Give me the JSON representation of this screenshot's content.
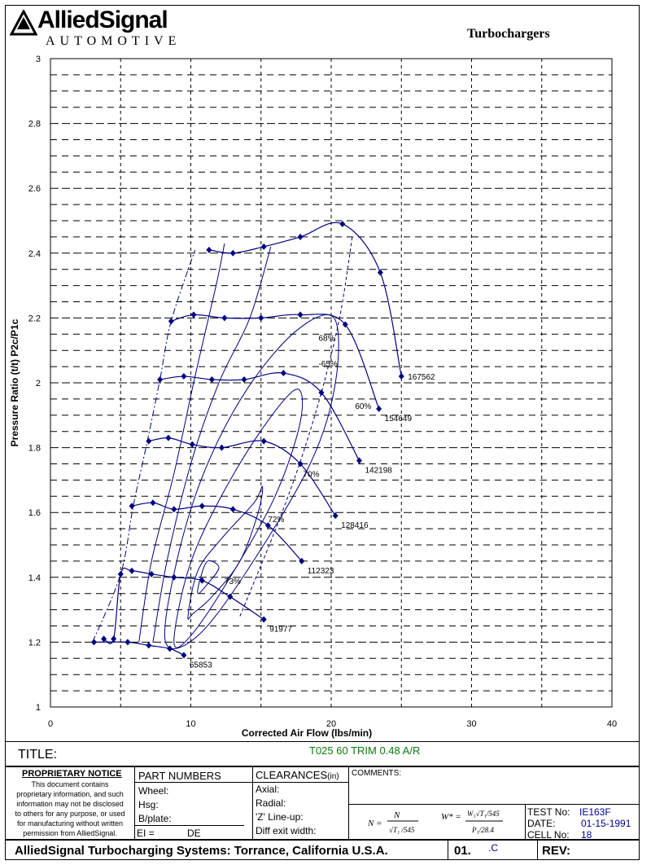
{
  "header": {
    "brand": "AlliedSignal",
    "brand_sub": "AUTOMOTIVE",
    "title": "Turbochargers"
  },
  "chart_data": {
    "type": "line",
    "title": "",
    "xlabel": "Corrected Air Flow (lbs/min)",
    "ylabel": "Pressure Ratio (t/t) P2c/P1c",
    "xlim": [
      0,
      40
    ],
    "ylim": [
      1,
      3
    ],
    "x_ticks": [
      "0",
      "10",
      "20",
      "30",
      "40"
    ],
    "y_ticks": [
      "1",
      "1.2",
      "1.4",
      "1.6",
      "1.8",
      "2",
      "2.2",
      "2.4",
      "2.6",
      "2.8",
      "3"
    ],
    "grid": true,
    "speed_lines": [
      {
        "label": "65853",
        "points": [
          [
            3.1,
            1.2
          ],
          [
            5.5,
            1.2
          ],
          [
            7,
            1.19
          ],
          [
            8.5,
            1.18
          ],
          [
            9.5,
            1.16
          ]
        ]
      },
      {
        "label": "91977",
        "points": [
          [
            3.8,
            1.21
          ],
          [
            4.5,
            1.21
          ],
          [
            5.0,
            1.41
          ],
          [
            5.8,
            1.42
          ],
          [
            7.2,
            1.41
          ],
          [
            8.8,
            1.4
          ],
          [
            10.8,
            1.39
          ],
          [
            12.8,
            1.34
          ],
          [
            15.2,
            1.27
          ]
        ]
      },
      {
        "label": "112323",
        "points": [
          [
            5.8,
            1.62
          ],
          [
            7.3,
            1.63
          ],
          [
            8.8,
            1.61
          ],
          [
            10.8,
            1.62
          ],
          [
            13.0,
            1.61
          ],
          [
            15.5,
            1.56
          ],
          [
            17.9,
            1.45
          ]
        ]
      },
      {
        "label": "128416",
        "points": [
          [
            7.0,
            1.82
          ],
          [
            8.4,
            1.83
          ],
          [
            10.1,
            1.81
          ],
          [
            12.2,
            1.8
          ],
          [
            15.2,
            1.82
          ],
          [
            17.8,
            1.75
          ],
          [
            20.3,
            1.59
          ]
        ]
      },
      {
        "label": "142198",
        "points": [
          [
            7.8,
            2.01
          ],
          [
            9.5,
            2.02
          ],
          [
            11.5,
            2.01
          ],
          [
            13.8,
            2.01
          ],
          [
            16.6,
            2.03
          ],
          [
            19.3,
            1.97
          ],
          [
            22.0,
            1.76
          ]
        ]
      },
      {
        "label": "154649",
        "points": [
          [
            8.6,
            2.19
          ],
          [
            10.2,
            2.21
          ],
          [
            12.4,
            2.2
          ],
          [
            15.0,
            2.2
          ],
          [
            17.8,
            2.21
          ],
          [
            21.0,
            2.18
          ],
          [
            23.4,
            1.92
          ]
        ]
      },
      {
        "label": "167562",
        "points": [
          [
            11.3,
            2.41
          ],
          [
            13.0,
            2.4
          ],
          [
            15.2,
            2.42
          ],
          [
            17.8,
            2.45
          ],
          [
            20.8,
            2.49
          ],
          [
            23.5,
            2.34
          ],
          [
            25.0,
            2.02
          ]
        ]
      }
    ],
    "surge_line": [
      [
        3.0,
        1.2
      ],
      [
        5.0,
        1.41
      ],
      [
        5.9,
        1.62
      ],
      [
        6.9,
        1.82
      ],
      [
        7.8,
        2.01
      ],
      [
        8.6,
        2.19
      ],
      [
        10.3,
        2.41
      ]
    ],
    "efficiency_islands": [
      {
        "label": "73%",
        "points": [
          [
            10.5,
            1.35
          ],
          [
            10.7,
            1.4
          ],
          [
            11.2,
            1.45
          ],
          [
            12.0,
            1.43
          ],
          [
            11.2,
            1.38
          ]
        ]
      },
      {
        "label": "72%",
        "points": [
          [
            9.8,
            1.28
          ],
          [
            10.5,
            1.42
          ],
          [
            12.2,
            1.52
          ],
          [
            14.5,
            1.63
          ],
          [
            15.1,
            1.68
          ],
          [
            14.8,
            1.6
          ],
          [
            13.5,
            1.45
          ],
          [
            11.5,
            1.34
          ],
          [
            10.2,
            1.29
          ]
        ]
      },
      {
        "label": "70%",
        "points": [
          [
            8.8,
            1.2
          ],
          [
            9.8,
            1.42
          ],
          [
            11.8,
            1.62
          ],
          [
            14.8,
            1.84
          ],
          [
            17.5,
            1.98
          ],
          [
            17.8,
            1.88
          ],
          [
            16.0,
            1.65
          ],
          [
            12.8,
            1.4
          ],
          [
            10.0,
            1.22
          ]
        ]
      },
      {
        "label": "68%",
        "points": [
          [
            8.2,
            1.2
          ],
          [
            9.0,
            1.45
          ],
          [
            11.0,
            1.73
          ],
          [
            14.0,
            1.98
          ],
          [
            17.5,
            2.16
          ],
          [
            20.2,
            2.2
          ],
          [
            20.3,
            2.0
          ],
          [
            18.5,
            1.75
          ],
          [
            14.0,
            1.42
          ],
          [
            10.5,
            1.22
          ]
        ]
      },
      {
        "label": "65%",
        "points": [
          [
            7.3,
            1.2
          ],
          [
            8.3,
            1.45
          ],
          [
            10.0,
            1.75
          ],
          [
            12.0,
            2.0
          ],
          [
            14.2,
            2.2
          ],
          [
            15.7,
            2.42
          ]
        ]
      },
      {
        "label": "60%",
        "points": [
          [
            6.3,
            1.2
          ],
          [
            7.2,
            1.45
          ],
          [
            8.8,
            1.72
          ],
          [
            10.3,
            2.02
          ],
          [
            11.8,
            2.3
          ],
          [
            12.4,
            2.43
          ]
        ]
      }
    ],
    "max_flow_line": [
      [
        13.5,
        1.28
      ],
      [
        16.5,
        1.6
      ],
      [
        18.7,
        1.88
      ],
      [
        20.5,
        2.18
      ],
      [
        21.5,
        2.45
      ]
    ],
    "annotations": [
      "68%",
      "-65%",
      "60%",
      "70%",
      "72%",
      "73%"
    ]
  },
  "form": {
    "title_label": "TITLE:",
    "title_value": "T025 60 TRIM  0.48 A/R",
    "proprietary_heading": "PROPRIETARY NOTICE",
    "proprietary_lines": [
      "This document contains",
      "proprietary information, and such",
      "information may not be disclosed",
      "to others for any purpose, or used",
      "for manufacturing without written",
      "permission from AlliedSignal."
    ],
    "part_numbers_heading": "PART NUMBERS",
    "part_fields": [
      "Wheel:",
      "Hsg:",
      "B/plate:"
    ],
    "ei_label": "EI =",
    "de_label": "DE",
    "clearances_heading": "CLEARANCES",
    "clearances_unit": "(in)",
    "clearance_fields": [
      "Axial:",
      "Radial:",
      "'Z' Line-up:",
      "Diff exit width:"
    ],
    "comments_label": "COMMENTS:",
    "test_no_label": "TEST No:",
    "test_no_value": "IE163F",
    "date_label": "DATE:",
    "date_value": "01-15-1991",
    "cell_no_label": "CELL No:",
    "cell_no_value": "18",
    "footer": "AlliedSignal Turbocharging Systems: Torrance, California U.S.A.",
    "doc_no": "01.",
    "doc_suffix": ".C",
    "rev_label": "REV:"
  }
}
